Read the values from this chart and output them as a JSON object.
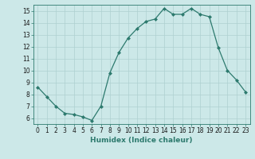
{
  "x": [
    0,
    1,
    2,
    3,
    4,
    5,
    6,
    7,
    8,
    9,
    10,
    11,
    12,
    13,
    14,
    15,
    16,
    17,
    18,
    19,
    20,
    21,
    22,
    23
  ],
  "y": [
    8.6,
    7.8,
    7.0,
    6.4,
    6.3,
    6.1,
    5.8,
    7.0,
    9.8,
    11.5,
    12.7,
    13.5,
    14.1,
    14.3,
    15.2,
    14.7,
    14.7,
    15.2,
    14.7,
    14.5,
    11.9,
    10.0,
    9.2,
    8.2
  ],
  "line_color": "#2d7a6e",
  "marker": "D",
  "marker_size": 2.0,
  "bg_color": "#cce8e8",
  "grid_color": "#aed0d0",
  "xlabel": "Humidex (Indice chaleur)",
  "ylim": [
    5.5,
    15.5
  ],
  "xlim": [
    -0.5,
    23.5
  ],
  "yticks": [
    6,
    7,
    8,
    9,
    10,
    11,
    12,
    13,
    14,
    15
  ],
  "xticks": [
    0,
    1,
    2,
    3,
    4,
    5,
    6,
    7,
    8,
    9,
    10,
    11,
    12,
    13,
    14,
    15,
    16,
    17,
    18,
    19,
    20,
    21,
    22,
    23
  ],
  "tick_fontsize": 5.5,
  "xlabel_fontsize": 6.5,
  "linewidth": 0.9
}
